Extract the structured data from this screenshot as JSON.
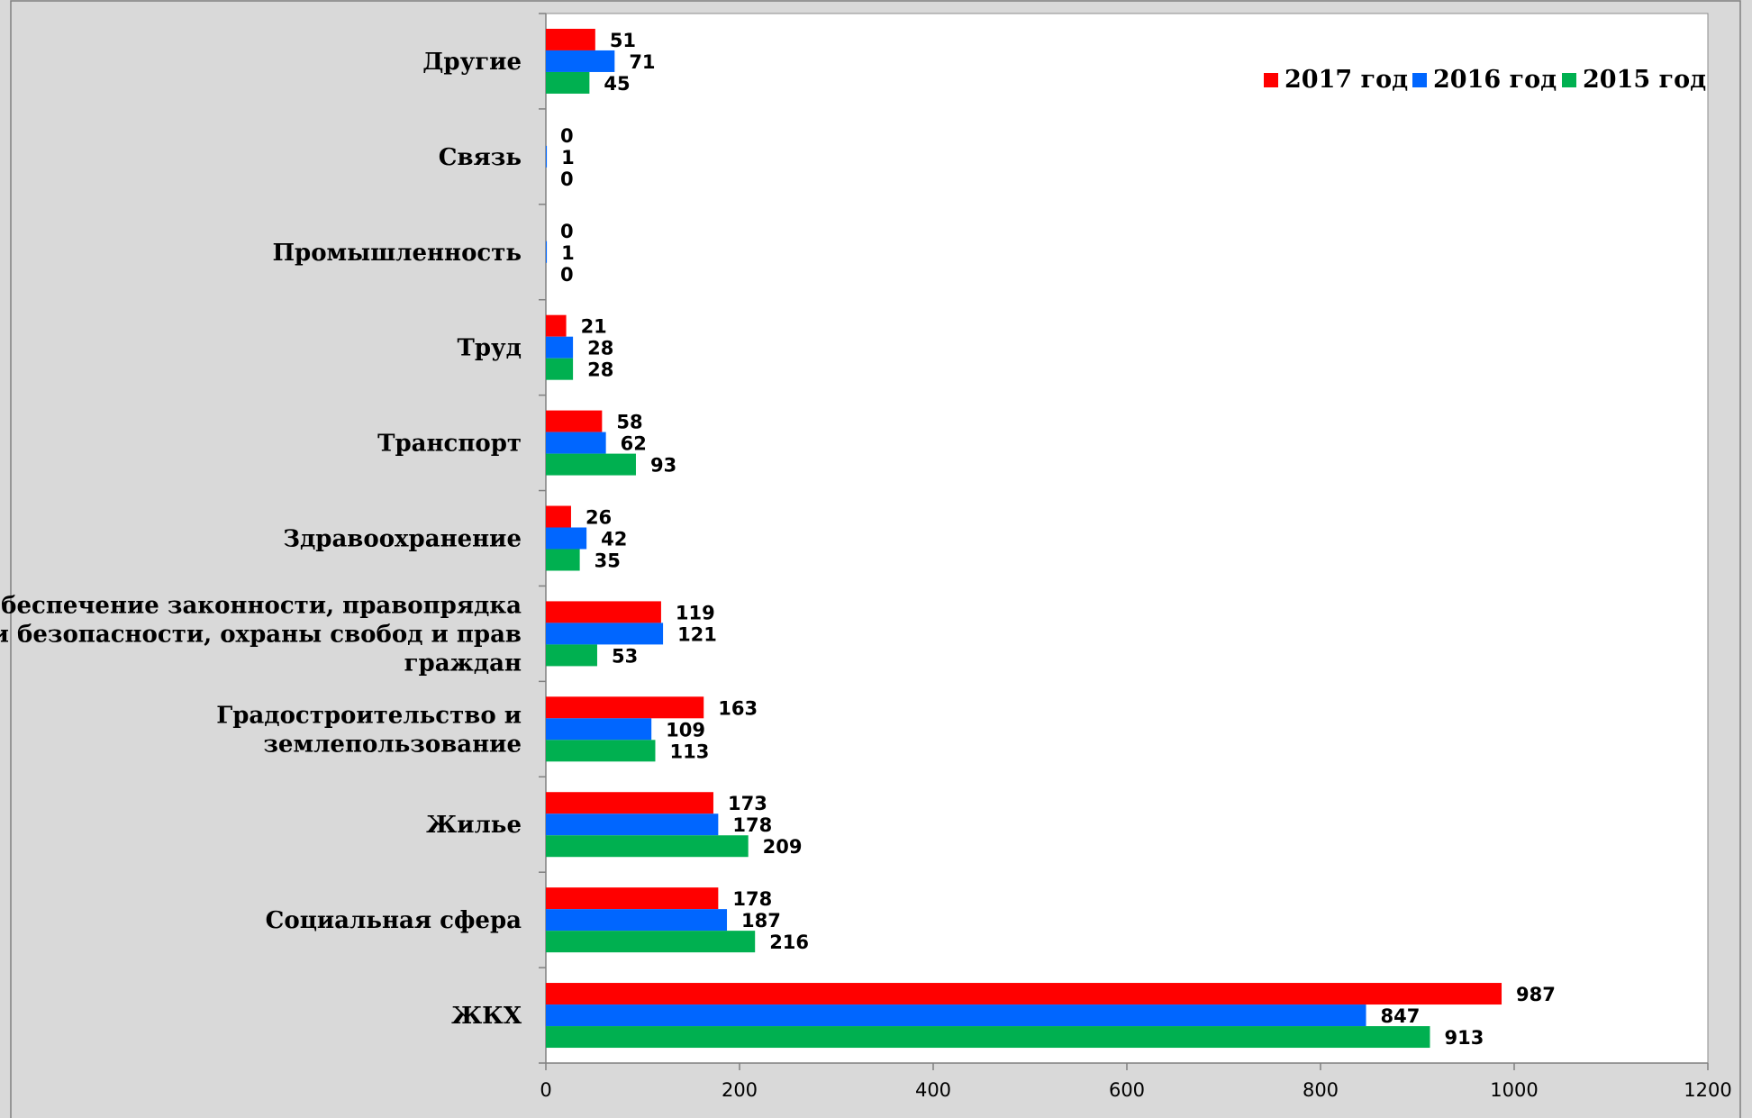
{
  "chart_data": {
    "type": "bar",
    "orientation": "horizontal",
    "categories": [
      "Другие",
      "Связь",
      "Промышленность",
      "Труд",
      "Транспорт",
      "Здравоохранение",
      "Обеспечение законности, правопрядка и безопасности, охраны свобод и прав граждан",
      "Градостроительство и землепользование",
      "Жилье",
      "Социальная сфера",
      "ЖКХ"
    ],
    "category_lines": [
      [
        "Другие"
      ],
      [
        "Связь"
      ],
      [
        "Промышленность"
      ],
      [
        "Труд"
      ],
      [
        "Транспорт"
      ],
      [
        "Здравоохранение"
      ],
      [
        "Обеспечение законности, правопрядка",
        "и безопасности, охраны свобод и прав",
        "граждан"
      ],
      [
        "Градостроительство и",
        "землепользование"
      ],
      [
        "Жилье"
      ],
      [
        "Социальная сфера"
      ],
      [
        "ЖКХ"
      ]
    ],
    "series": [
      {
        "name": "2017 год",
        "color": "#ff0000",
        "values": [
          51,
          0,
          0,
          21,
          58,
          26,
          119,
          163,
          173,
          178,
          987
        ]
      },
      {
        "name": "2016 год",
        "color": "#0066ff",
        "values": [
          71,
          1,
          1,
          28,
          62,
          42,
          121,
          109,
          178,
          187,
          847
        ]
      },
      {
        "name": "2015 год",
        "color": "#00b050",
        "values": [
          45,
          0,
          0,
          28,
          93,
          35,
          53,
          113,
          209,
          216,
          913
        ]
      }
    ],
    "x_ticks": [
      "0",
      "200",
      "400",
      "600",
      "800",
      "1000",
      "1200"
    ],
    "xlim": [
      0,
      1200
    ],
    "legend_position": "top-right",
    "title": "",
    "xlabel": "",
    "ylabel": "",
    "grid": false
  }
}
